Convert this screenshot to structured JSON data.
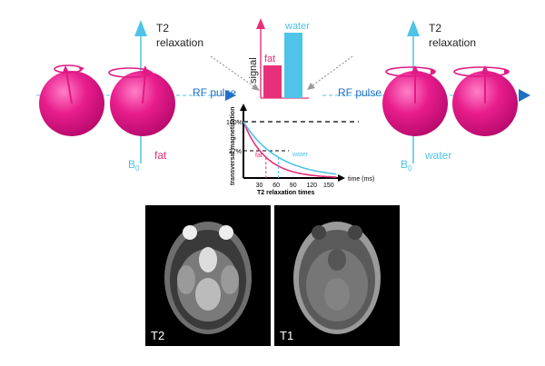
{
  "left_panel": {
    "title_line1": "T2",
    "title_line2": "relaxation",
    "b0_label": "B",
    "b0_subscript": "0",
    "tissue_label": "fat",
    "rf_label": "RF pulse"
  },
  "right_panel": {
    "title_line1": "T2",
    "title_line2": "relaxation",
    "b0_label": "B",
    "b0_subscript": "0",
    "tissue_label": "water",
    "rf_label": "RF pulse"
  },
  "signal_chart": {
    "ylabel": "signal",
    "bars": [
      {
        "label": "fat",
        "value": 0.5,
        "color": "#e8307a"
      },
      {
        "label": "water",
        "value": 1.0,
        "color": "#4fc3e8"
      }
    ]
  },
  "decay_chart": {
    "ylabel": "transversal magnetization",
    "xlabel": "T2 relaxation times",
    "x_unit": "time (ms)",
    "y_ticks": [
      "100%",
      "37%"
    ],
    "x_ticks": [
      "30",
      "60",
      "90",
      "120",
      "150"
    ],
    "curves": [
      {
        "label": "fat",
        "color": "#e8307a"
      },
      {
        "label": "water",
        "color": "#4fc3e8"
      }
    ]
  },
  "mri_images": [
    {
      "label": "T2"
    },
    {
      "label": "T1"
    }
  ],
  "colors": {
    "sphere": "#e01b84",
    "fat": "#e8307a",
    "water": "#4fc3e8",
    "axis_arrow": "#4fc3e8",
    "rf_arrow": "#1f6fc5"
  }
}
